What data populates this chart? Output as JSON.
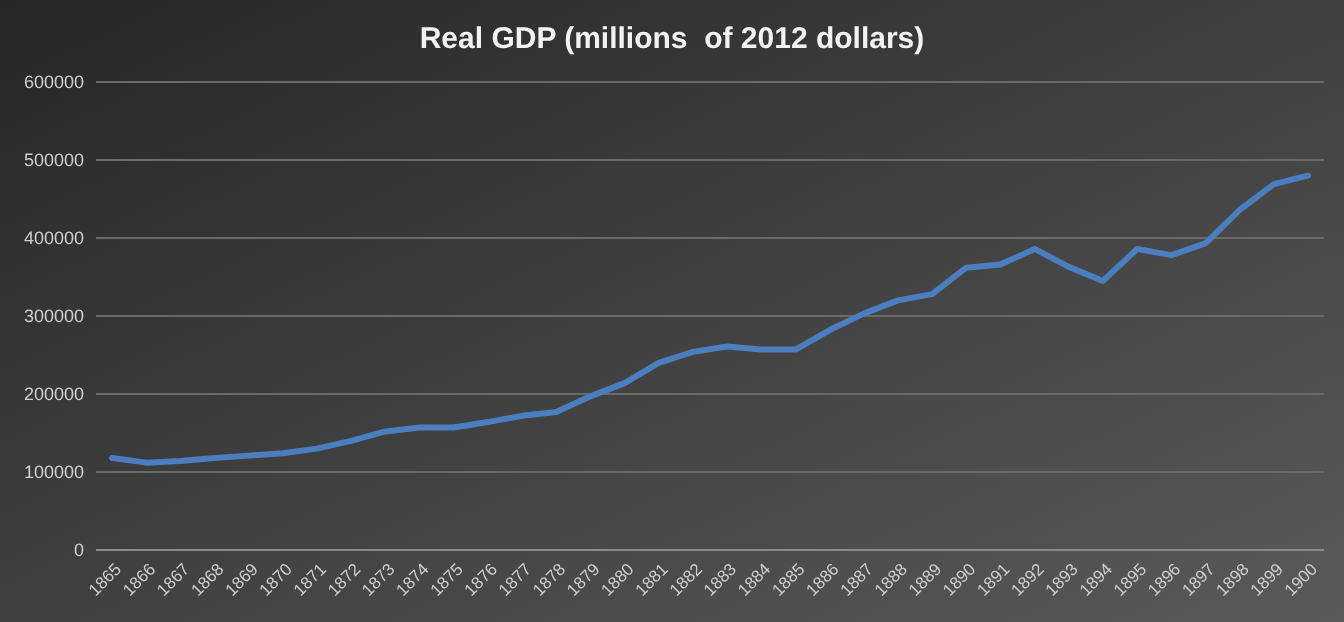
{
  "chart_data": {
    "type": "line",
    "title": "Real GDP (millions  of 2012 dollars)",
    "categories": [
      "1865",
      "1866",
      "1867",
      "1868",
      "1869",
      "1870",
      "1871",
      "1872",
      "1873",
      "1874",
      "1875",
      "1876",
      "1877",
      "1878",
      "1879",
      "1880",
      "1881",
      "1882",
      "1883",
      "1884",
      "1885",
      "1886",
      "1887",
      "1888",
      "1889",
      "1890",
      "1891",
      "1892",
      "1893",
      "1894",
      "1895",
      "1896",
      "1897",
      "1898",
      "1899",
      "1900"
    ],
    "series": [
      {
        "color": "#4a7ebf",
        "values": [
          118000,
          112000,
          114000,
          118000,
          121000,
          124000,
          130000,
          140000,
          152000,
          157000,
          157000,
          164000,
          172000,
          177000,
          197000,
          214000,
          240000,
          254000,
          261000,
          257000,
          257000,
          282000,
          303000,
          320000,
          328000,
          362000,
          366000,
          386000,
          363000,
          345000,
          386000,
          378000,
          393000,
          436000,
          469000,
          480000
        ]
      }
    ],
    "ylim": [
      0,
      600000
    ],
    "yticks": [
      0,
      100000,
      200000,
      300000,
      400000,
      500000,
      600000
    ],
    "grid": "y",
    "marker": "none",
    "line_style": "solid"
  }
}
